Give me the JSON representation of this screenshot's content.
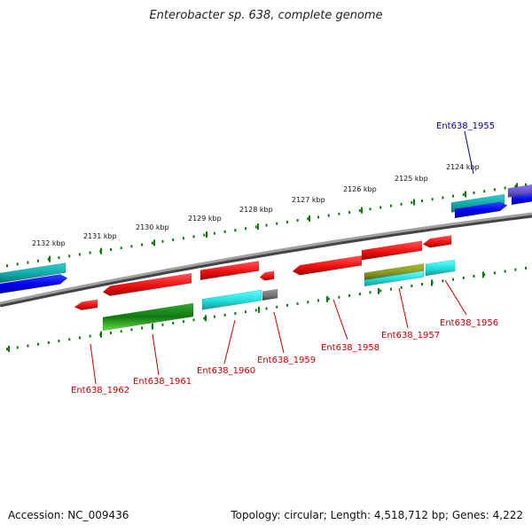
{
  "title": "Enterobacter sp. 638, complete genome",
  "footer": {
    "accession": "Accession: NC_009436",
    "topology": "Topology: circular; Length: 4,518,712 bp; Genes: 4,222"
  },
  "kbp_labels": [
    "2132 kbp",
    "2131 kbp",
    "2130 kbp",
    "2129 kbp",
    "2128 kbp",
    "2127 kbp",
    "2126 kbp",
    "2125 kbp",
    "2124 kbp"
  ],
  "gene_labels": [
    "Ent638_1955",
    "Ent638_1956",
    "Ent638_1957",
    "Ent638_1958",
    "Ent638_1959",
    "Ent638_1960",
    "Ent638_1961",
    "Ent638_1962"
  ],
  "colors": {
    "red": "#ee1111",
    "blue": "#0000ee",
    "cyan": "#22dddd",
    "teal": "#11aaaa",
    "green": "#229922",
    "olive": "#889922",
    "purple": "#6655cc",
    "gray": "#777777",
    "backbone": "#888888",
    "tick": "#117711",
    "label_red": "#cc0000",
    "label_blue": "#000099"
  }
}
